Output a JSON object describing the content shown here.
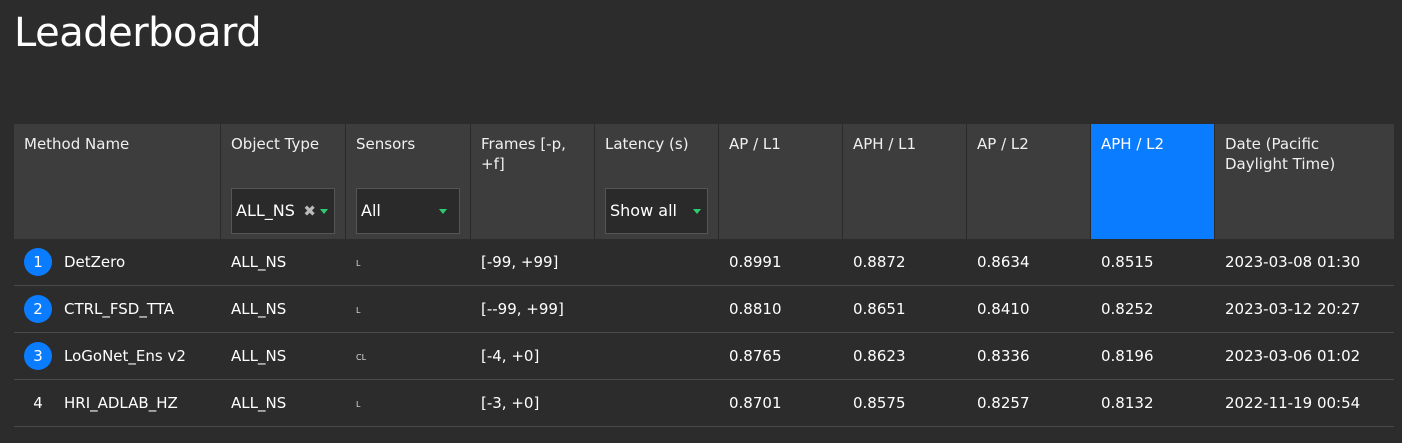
{
  "page": {
    "title": "Leaderboard"
  },
  "colors": {
    "accent": "#0a7cff",
    "background": "#2c2c2c",
    "header": "#3d3d3d"
  },
  "columns": [
    {
      "label": "Method Name"
    },
    {
      "label": "Object Type"
    },
    {
      "label": "Sensors"
    },
    {
      "label": "Frames [-p, +f]"
    },
    {
      "label": "Latency (s)"
    },
    {
      "label": "AP / L1"
    },
    {
      "label": "APH / L1"
    },
    {
      "label": "AP / L2"
    },
    {
      "label": "APH / L2",
      "sorted": true
    },
    {
      "label": "Date (Pacific Daylight Time)"
    }
  ],
  "filters": {
    "object_type": {
      "value": "ALL_NS",
      "clear_icon": "close-icon",
      "caret_icon": "caret-down-icon"
    },
    "sensors": {
      "value": "All",
      "caret_icon": "caret-down-icon"
    },
    "latency": {
      "value": "Show all",
      "caret_icon": "caret-down-icon"
    }
  },
  "rows": [
    {
      "rank": "1",
      "method": "DetZero",
      "object_type": "ALL_NS",
      "sensors": "L",
      "frames": "[-99, +99]",
      "latency": "",
      "ap_l1": "0.8991",
      "aph_l1": "0.8872",
      "ap_l2": "0.8634",
      "aph_l2": "0.8515",
      "date": "2023-03-08 01:30"
    },
    {
      "rank": "2",
      "method": "CTRL_FSD_TTA",
      "object_type": "ALL_NS",
      "sensors": "L",
      "frames": "[--99, +99]",
      "latency": "",
      "ap_l1": "0.8810",
      "aph_l1": "0.8651",
      "ap_l2": "0.8410",
      "aph_l2": "0.8252",
      "date": "2023-03-12 20:27"
    },
    {
      "rank": "3",
      "method": "LoGoNet_Ens v2",
      "object_type": "ALL_NS",
      "sensors": "CL",
      "frames": "[-4, +0]",
      "latency": "",
      "ap_l1": "0.8765",
      "aph_l1": "0.8623",
      "ap_l2": "0.8336",
      "aph_l2": "0.8196",
      "date": "2023-03-06 01:02"
    },
    {
      "rank": "4",
      "method": "HRI_ADLAB_HZ",
      "object_type": "ALL_NS",
      "sensors": "L",
      "frames": "[-3, +0]",
      "latency": "",
      "ap_l1": "0.8701",
      "aph_l1": "0.8575",
      "ap_l2": "0.8257",
      "aph_l2": "0.8132",
      "date": "2022-11-19 00:54"
    }
  ]
}
